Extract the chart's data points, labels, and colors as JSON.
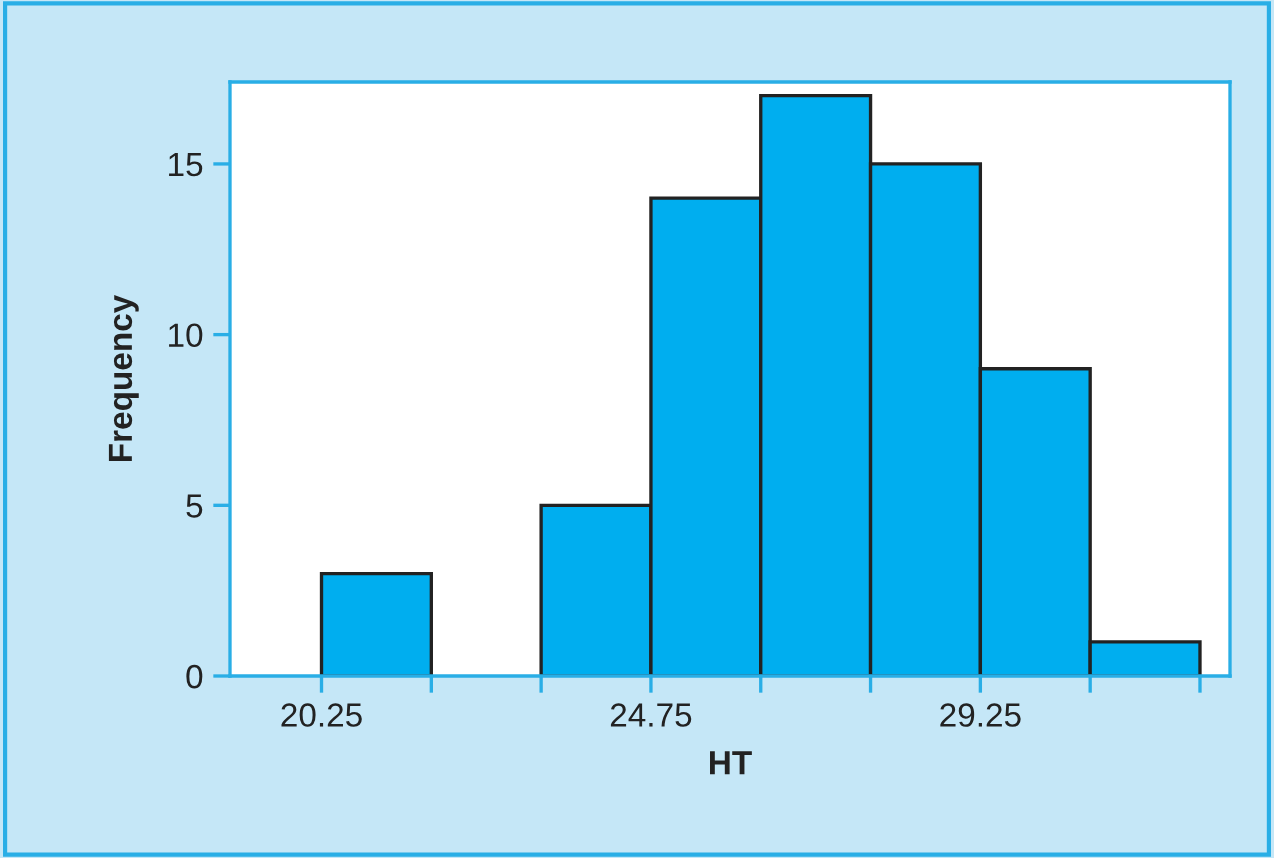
{
  "chart_data": {
    "type": "histogram",
    "xlabel": "HT",
    "ylabel": "Frequency",
    "bins": [
      20.25,
      21.75,
      23.25,
      24.75,
      26.25,
      27.75,
      29.25,
      30.75,
      32.25
    ],
    "values": [
      3,
      0,
      5,
      14,
      17,
      15,
      9,
      1
    ],
    "color": "#00aeef",
    "xlim": [
      19.0,
      32.66
    ],
    "ylim": [
      0,
      17.4
    ],
    "xticks": [
      20.25,
      {
        "value": 21.75,
        "label": null
      },
      {
        "value": 23.25,
        "label": null
      },
      24.75,
      {
        "value": 26.25,
        "label": null
      },
      {
        "value": 27.75,
        "label": null
      },
      29.25,
      {
        "value": 30.75,
        "label": null
      },
      {
        "value": 32.25,
        "label": null
      }
    ],
    "yticks": [
      0,
      5,
      10,
      15
    ],
    "grid": false
  }
}
